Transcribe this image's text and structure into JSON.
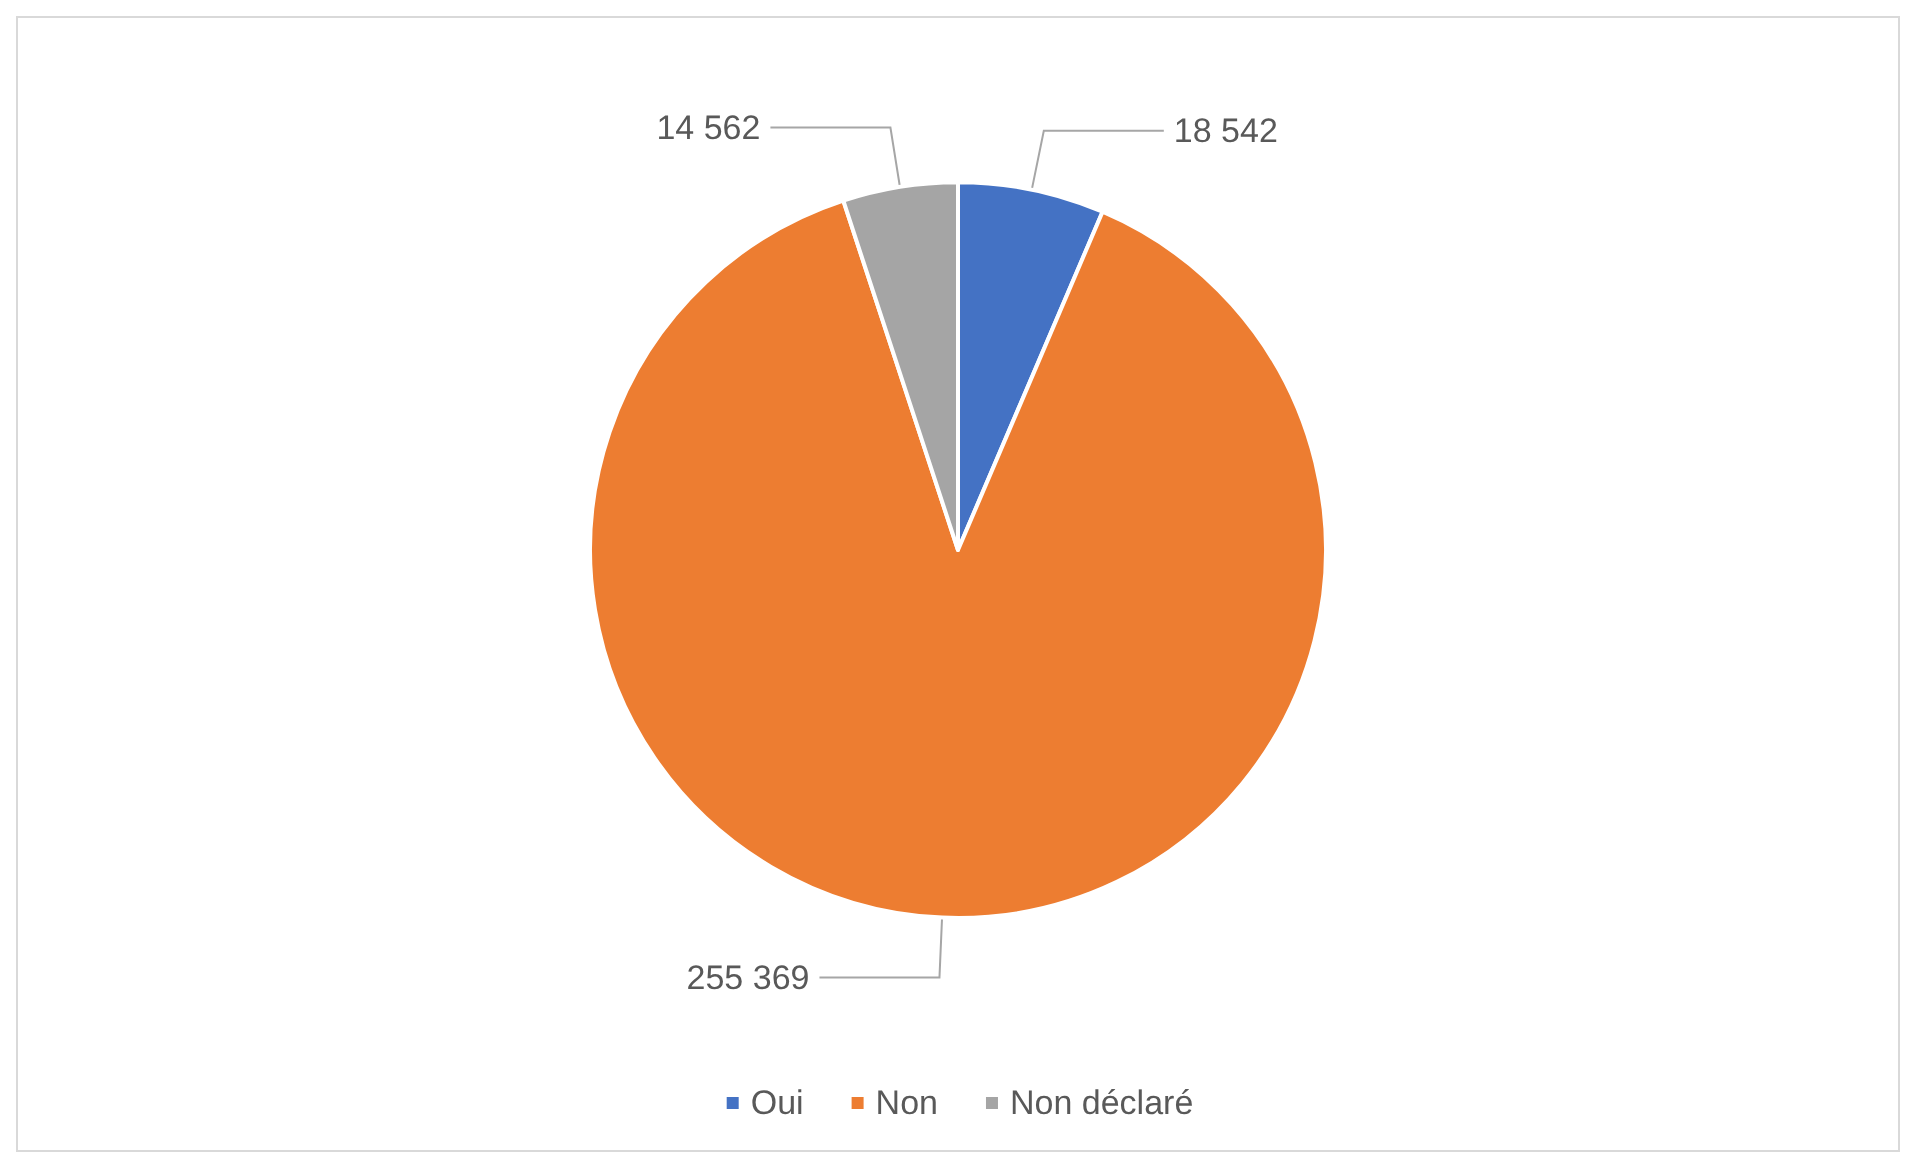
{
  "chart_data": {
    "type": "pie",
    "categories": [
      "Oui",
      "Non",
      "Non déclaré"
    ],
    "values": [
      18542,
      255369,
      14562
    ],
    "colors": [
      "#4472c4",
      "#ed7d31",
      "#a5a5a5"
    ],
    "value_labels": [
      "18 542",
      "255 369",
      "14 562"
    ],
    "legend": "bottom"
  }
}
